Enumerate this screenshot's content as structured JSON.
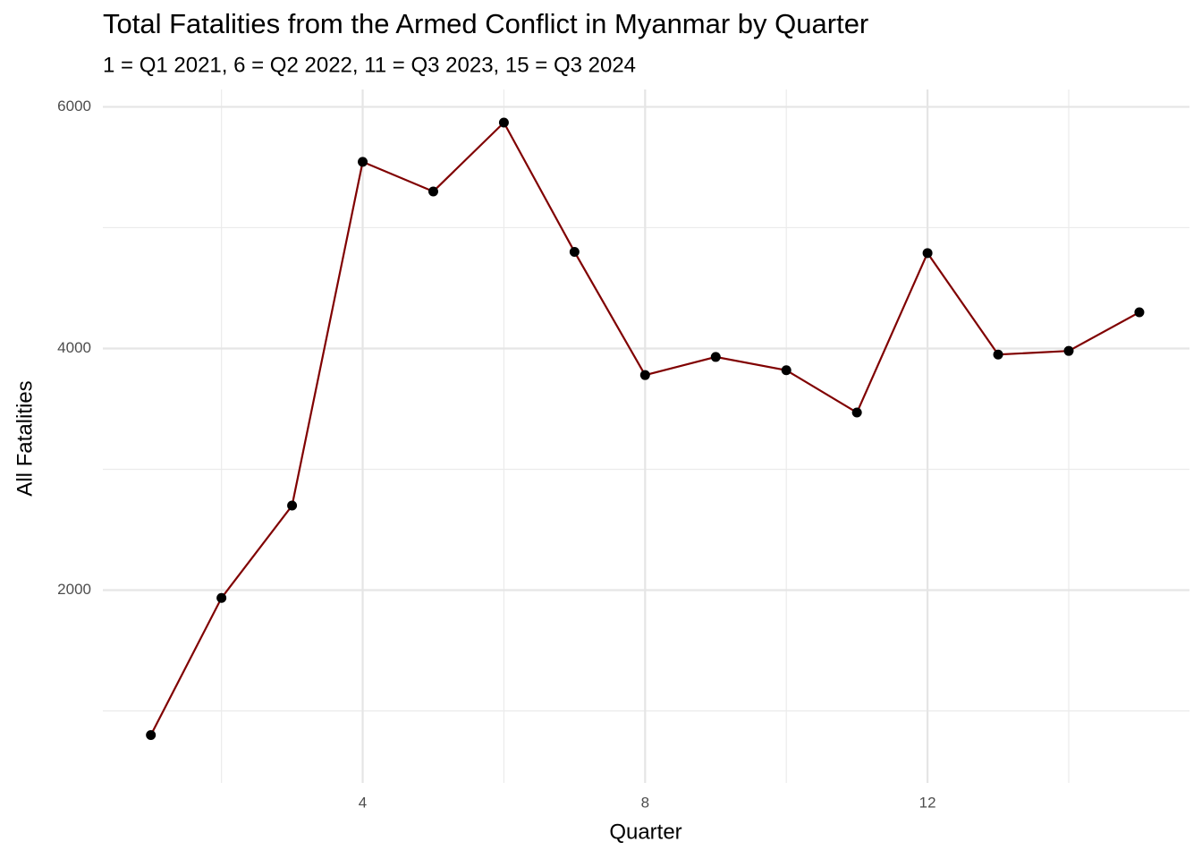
{
  "chart_data": {
    "type": "line",
    "title": "Total Fatalities from the Armed Conflict in Myanmar by Quarter",
    "subtitle": "1 = Q1 2021, 6 = Q2 2022, 11 = Q3 2023, 15 = Q3 2024",
    "x_label": "Quarter",
    "y_label": "All Fatalities",
    "x": [
      1,
      2,
      3,
      4,
      5,
      6,
      7,
      8,
      9,
      10,
      11,
      12,
      13,
      14,
      15
    ],
    "values": [
      800,
      1935,
      2700,
      5545,
      5300,
      5870,
      4800,
      3780,
      3930,
      3820,
      3470,
      4790,
      3950,
      3980,
      4300
    ],
    "color": "#800000",
    "point_color": "#000000",
    "xlim": [
      0.32,
      15.71
    ],
    "ylim": [
      404,
      6144
    ],
    "xticks": [
      4,
      8,
      12
    ],
    "yticks": [
      2000,
      4000,
      6000
    ],
    "xminor": [
      2,
      6,
      10,
      14
    ],
    "yminor": [
      1000,
      3000,
      5000
    ],
    "grid": true
  }
}
